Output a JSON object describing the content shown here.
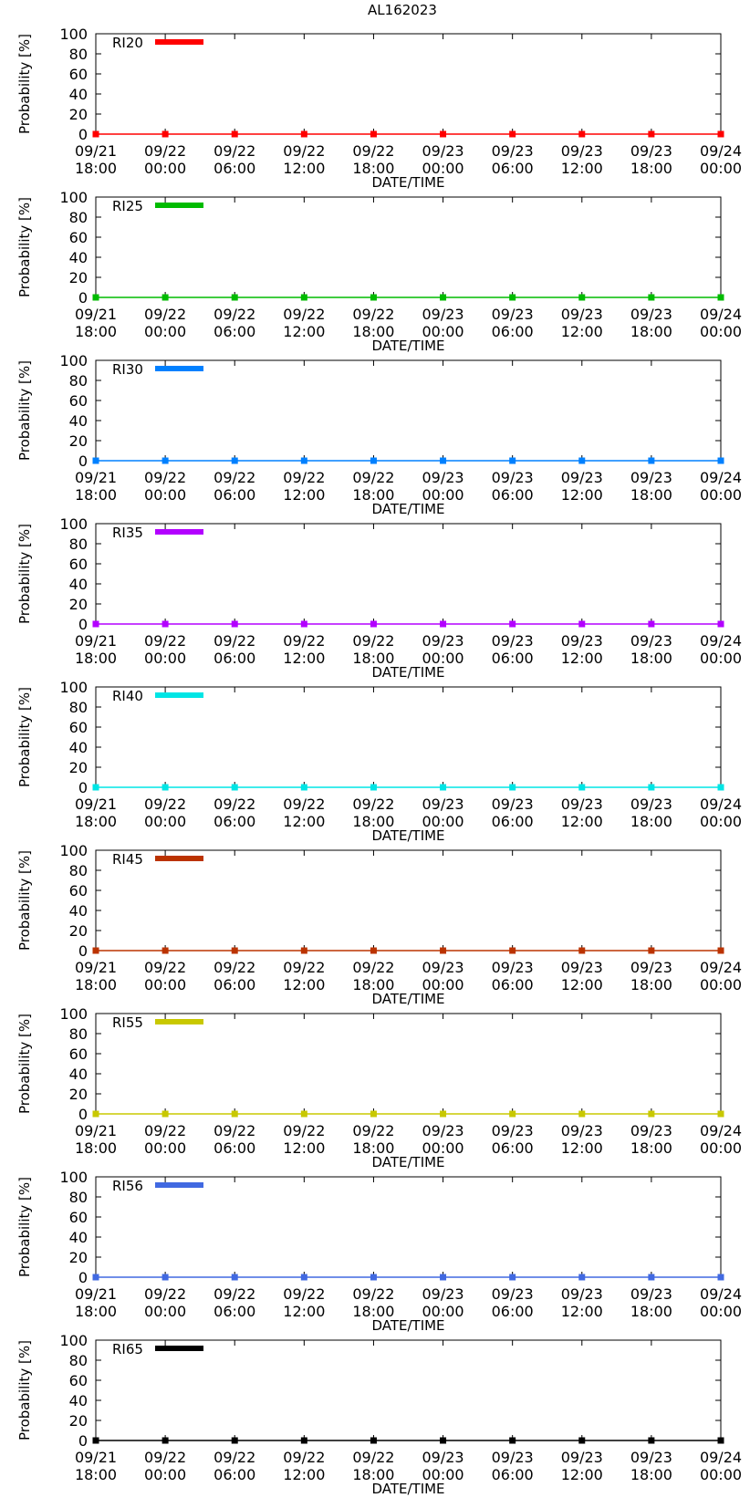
{
  "page_title": "AL162023",
  "chart_data": [
    {
      "type": "line",
      "name": "RI20",
      "color": "#ff0000",
      "x": [
        "09/21 18:00",
        "09/22 00:00",
        "09/22 06:00",
        "09/22 12:00",
        "09/22 18:00",
        "09/23 00:00",
        "09/23 06:00",
        "09/23 12:00",
        "09/23 18:00",
        "09/24 00:00"
      ],
      "values": [
        0,
        0,
        0,
        0,
        0,
        0,
        0,
        0,
        0,
        0
      ],
      "xticks": [
        [
          "09/21",
          "18:00"
        ],
        [
          "09/22",
          "00:00"
        ],
        [
          "09/22",
          "06:00"
        ],
        [
          "09/22",
          "12:00"
        ],
        [
          "09/22",
          "18:00"
        ],
        [
          "09/23",
          "00:00"
        ],
        [
          "09/23",
          "06:00"
        ],
        [
          "09/23",
          "12:00"
        ],
        [
          "09/23",
          "18:00"
        ],
        [
          "09/24",
          "00:00"
        ]
      ],
      "yticks": [
        "0",
        "20",
        "40",
        "60",
        "80",
        "100"
      ],
      "ylim": [
        0,
        100
      ],
      "xlabel": "DATE/TIME",
      "ylabel": "Probability [%]",
      "legend": "RI20",
      "legend_position": "top-left",
      "grid": false
    },
    {
      "type": "line",
      "name": "RI25",
      "color": "#00bb00",
      "x": [
        "09/21 18:00",
        "09/22 00:00",
        "09/22 06:00",
        "09/22 12:00",
        "09/22 18:00",
        "09/23 00:00",
        "09/23 06:00",
        "09/23 12:00",
        "09/23 18:00",
        "09/24 00:00"
      ],
      "values": [
        0,
        0,
        0,
        0,
        0,
        0,
        0,
        0,
        0,
        0
      ],
      "xticks": [
        [
          "09/21",
          "18:00"
        ],
        [
          "09/22",
          "00:00"
        ],
        [
          "09/22",
          "06:00"
        ],
        [
          "09/22",
          "12:00"
        ],
        [
          "09/22",
          "18:00"
        ],
        [
          "09/23",
          "00:00"
        ],
        [
          "09/23",
          "06:00"
        ],
        [
          "09/23",
          "12:00"
        ],
        [
          "09/23",
          "18:00"
        ],
        [
          "09/24",
          "00:00"
        ]
      ],
      "yticks": [
        "0",
        "20",
        "40",
        "60",
        "80",
        "100"
      ],
      "ylim": [
        0,
        100
      ],
      "xlabel": "DATE/TIME",
      "ylabel": "Probability [%]",
      "legend": "RI25",
      "legend_position": "top-left",
      "grid": false
    },
    {
      "type": "line",
      "name": "RI30",
      "color": "#0080ff",
      "x": [
        "09/21 18:00",
        "09/22 00:00",
        "09/22 06:00",
        "09/22 12:00",
        "09/22 18:00",
        "09/23 00:00",
        "09/23 06:00",
        "09/23 12:00",
        "09/23 18:00",
        "09/24 00:00"
      ],
      "values": [
        0,
        0,
        0,
        0,
        0,
        0,
        0,
        0,
        0,
        0
      ],
      "xticks": [
        [
          "09/21",
          "18:00"
        ],
        [
          "09/22",
          "00:00"
        ],
        [
          "09/22",
          "06:00"
        ],
        [
          "09/22",
          "12:00"
        ],
        [
          "09/22",
          "18:00"
        ],
        [
          "09/23",
          "00:00"
        ],
        [
          "09/23",
          "06:00"
        ],
        [
          "09/23",
          "12:00"
        ],
        [
          "09/23",
          "18:00"
        ],
        [
          "09/24",
          "00:00"
        ]
      ],
      "yticks": [
        "0",
        "20",
        "40",
        "60",
        "80",
        "100"
      ],
      "ylim": [
        0,
        100
      ],
      "xlabel": "DATE/TIME",
      "ylabel": "Probability [%]",
      "legend": "RI30",
      "legend_position": "top-left",
      "grid": false
    },
    {
      "type": "line",
      "name": "RI35",
      "color": "#b300ff",
      "x": [
        "09/21 18:00",
        "09/22 00:00",
        "09/22 06:00",
        "09/22 12:00",
        "09/22 18:00",
        "09/23 00:00",
        "09/23 06:00",
        "09/23 12:00",
        "09/23 18:00",
        "09/24 00:00"
      ],
      "values": [
        0,
        0,
        0,
        0,
        0,
        0,
        0,
        0,
        0,
        0
      ],
      "xticks": [
        [
          "09/21",
          "18:00"
        ],
        [
          "09/22",
          "00:00"
        ],
        [
          "09/22",
          "06:00"
        ],
        [
          "09/22",
          "12:00"
        ],
        [
          "09/22",
          "18:00"
        ],
        [
          "09/23",
          "00:00"
        ],
        [
          "09/23",
          "06:00"
        ],
        [
          "09/23",
          "12:00"
        ],
        [
          "09/23",
          "18:00"
        ],
        [
          "09/24",
          "00:00"
        ]
      ],
      "yticks": [
        "0",
        "20",
        "40",
        "60",
        "80",
        "100"
      ],
      "ylim": [
        0,
        100
      ],
      "xlabel": "DATE/TIME",
      "ylabel": "Probability [%]",
      "legend": "RI35",
      "legend_position": "top-left",
      "grid": false
    },
    {
      "type": "line",
      "name": "RI40",
      "color": "#00e5e5",
      "x": [
        "09/21 18:00",
        "09/22 00:00",
        "09/22 06:00",
        "09/22 12:00",
        "09/22 18:00",
        "09/23 00:00",
        "09/23 06:00",
        "09/23 12:00",
        "09/23 18:00",
        "09/24 00:00"
      ],
      "values": [
        0,
        0,
        0,
        0,
        0,
        0,
        0,
        0,
        0,
        0
      ],
      "xticks": [
        [
          "09/21",
          "18:00"
        ],
        [
          "09/22",
          "00:00"
        ],
        [
          "09/22",
          "06:00"
        ],
        [
          "09/22",
          "12:00"
        ],
        [
          "09/22",
          "18:00"
        ],
        [
          "09/23",
          "00:00"
        ],
        [
          "09/23",
          "06:00"
        ],
        [
          "09/23",
          "12:00"
        ],
        [
          "09/23",
          "18:00"
        ],
        [
          "09/24",
          "00:00"
        ]
      ],
      "yticks": [
        "0",
        "20",
        "40",
        "60",
        "80",
        "100"
      ],
      "ylim": [
        0,
        100
      ],
      "xlabel": "DATE/TIME",
      "ylabel": "Probability [%]",
      "legend": "RI40",
      "legend_position": "top-left",
      "grid": false
    },
    {
      "type": "line",
      "name": "RI45",
      "color": "#bb3300",
      "x": [
        "09/21 18:00",
        "09/22 00:00",
        "09/22 06:00",
        "09/22 12:00",
        "09/22 18:00",
        "09/23 00:00",
        "09/23 06:00",
        "09/23 12:00",
        "09/23 18:00",
        "09/24 00:00"
      ],
      "values": [
        0,
        0,
        0,
        0,
        0,
        0,
        0,
        0,
        0,
        0
      ],
      "xticks": [
        [
          "09/21",
          "18:00"
        ],
        [
          "09/22",
          "00:00"
        ],
        [
          "09/22",
          "06:00"
        ],
        [
          "09/22",
          "12:00"
        ],
        [
          "09/22",
          "18:00"
        ],
        [
          "09/23",
          "00:00"
        ],
        [
          "09/23",
          "06:00"
        ],
        [
          "09/23",
          "12:00"
        ],
        [
          "09/23",
          "18:00"
        ],
        [
          "09/24",
          "00:00"
        ]
      ],
      "yticks": [
        "0",
        "20",
        "40",
        "60",
        "80",
        "100"
      ],
      "ylim": [
        0,
        100
      ],
      "xlabel": "DATE/TIME",
      "ylabel": "Probability [%]",
      "legend": "RI45",
      "legend_position": "top-left",
      "grid": false
    },
    {
      "type": "line",
      "name": "RI55",
      "color": "#c8c800",
      "x": [
        "09/21 18:00",
        "09/22 00:00",
        "09/22 06:00",
        "09/22 12:00",
        "09/22 18:00",
        "09/23 00:00",
        "09/23 06:00",
        "09/23 12:00",
        "09/23 18:00",
        "09/24 00:00"
      ],
      "values": [
        0,
        0,
        0,
        0,
        0,
        0,
        0,
        0,
        0,
        0
      ],
      "xticks": [
        [
          "09/21",
          "18:00"
        ],
        [
          "09/22",
          "00:00"
        ],
        [
          "09/22",
          "06:00"
        ],
        [
          "09/22",
          "12:00"
        ],
        [
          "09/22",
          "18:00"
        ],
        [
          "09/23",
          "00:00"
        ],
        [
          "09/23",
          "06:00"
        ],
        [
          "09/23",
          "12:00"
        ],
        [
          "09/23",
          "18:00"
        ],
        [
          "09/24",
          "00:00"
        ]
      ],
      "yticks": [
        "0",
        "20",
        "40",
        "60",
        "80",
        "100"
      ],
      "ylim": [
        0,
        100
      ],
      "xlabel": "DATE/TIME",
      "ylabel": "Probability [%]",
      "legend": "RI55",
      "legend_position": "top-left",
      "grid": false
    },
    {
      "type": "line",
      "name": "RI56",
      "color": "#4169e1",
      "x": [
        "09/21 18:00",
        "09/22 00:00",
        "09/22 06:00",
        "09/22 12:00",
        "09/22 18:00",
        "09/23 00:00",
        "09/23 06:00",
        "09/23 12:00",
        "09/23 18:00",
        "09/24 00:00"
      ],
      "values": [
        0,
        0,
        0,
        0,
        0,
        0,
        0,
        0,
        0,
        0
      ],
      "xticks": [
        [
          "09/21",
          "18:00"
        ],
        [
          "09/22",
          "00:00"
        ],
        [
          "09/22",
          "06:00"
        ],
        [
          "09/22",
          "12:00"
        ],
        [
          "09/22",
          "18:00"
        ],
        [
          "09/23",
          "00:00"
        ],
        [
          "09/23",
          "06:00"
        ],
        [
          "09/23",
          "12:00"
        ],
        [
          "09/23",
          "18:00"
        ],
        [
          "09/24",
          "00:00"
        ]
      ],
      "yticks": [
        "0",
        "20",
        "40",
        "60",
        "80",
        "100"
      ],
      "ylim": [
        0,
        100
      ],
      "xlabel": "DATE/TIME",
      "ylabel": "Probability [%]",
      "legend": "RI56",
      "legend_position": "top-left",
      "grid": false
    },
    {
      "type": "line",
      "name": "RI65",
      "color": "#000000",
      "x": [
        "09/21 18:00",
        "09/22 00:00",
        "09/22 06:00",
        "09/22 12:00",
        "09/22 18:00",
        "09/23 00:00",
        "09/23 06:00",
        "09/23 12:00",
        "09/23 18:00",
        "09/24 00:00"
      ],
      "values": [
        0,
        0,
        0,
        0,
        0,
        0,
        0,
        0,
        0,
        0
      ],
      "xticks": [
        [
          "09/21",
          "18:00"
        ],
        [
          "09/22",
          "00:00"
        ],
        [
          "09/22",
          "06:00"
        ],
        [
          "09/22",
          "12:00"
        ],
        [
          "09/22",
          "18:00"
        ],
        [
          "09/23",
          "00:00"
        ],
        [
          "09/23",
          "06:00"
        ],
        [
          "09/23",
          "12:00"
        ],
        [
          "09/23",
          "18:00"
        ],
        [
          "09/24",
          "00:00"
        ]
      ],
      "yticks": [
        "0",
        "20",
        "40",
        "60",
        "80",
        "100"
      ],
      "ylim": [
        0,
        100
      ],
      "xlabel": "DATE/TIME",
      "ylabel": "Probability [%]",
      "legend": "RI65",
      "legend_position": "top-left",
      "grid": false
    }
  ]
}
